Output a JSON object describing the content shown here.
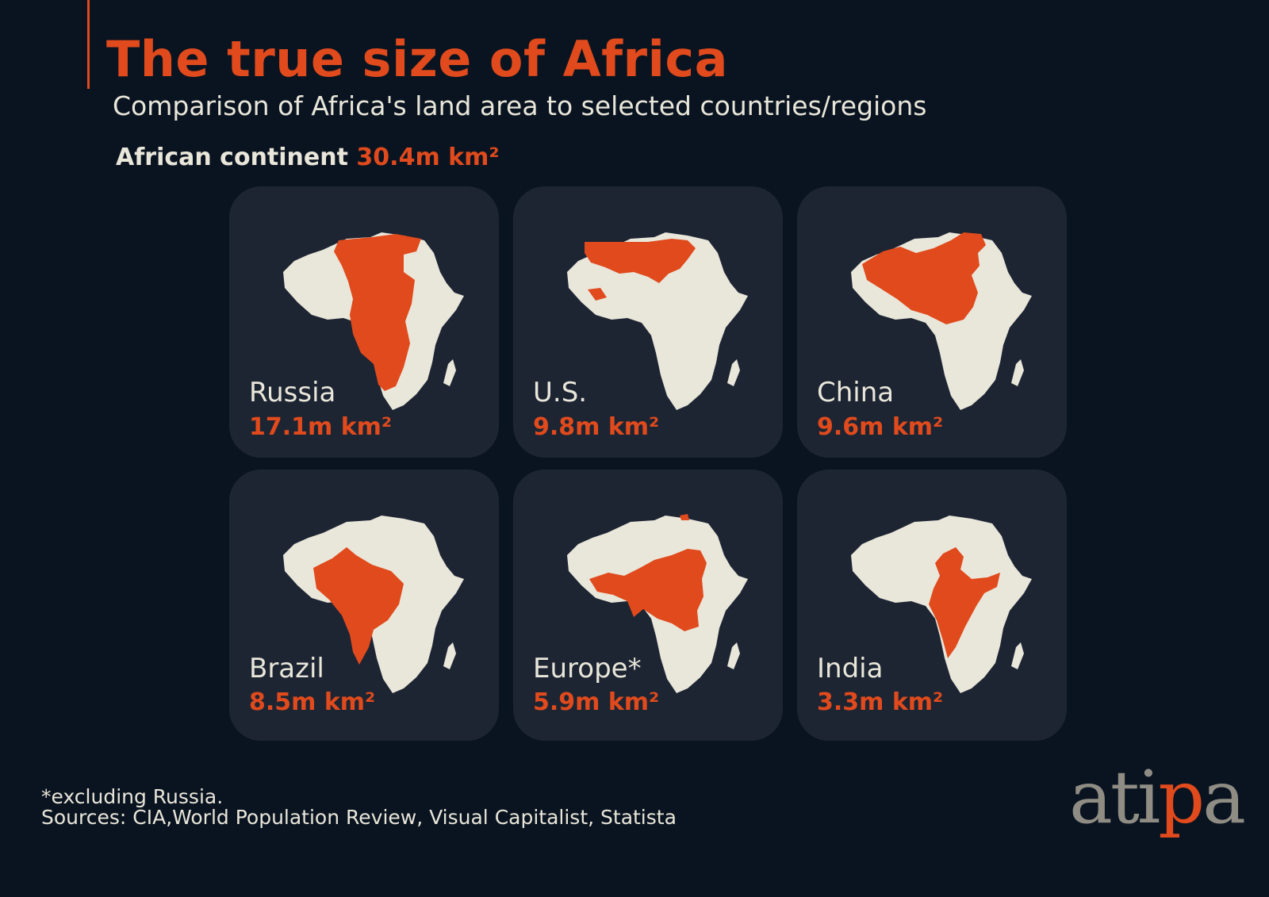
{
  "title": "The true size of Africa",
  "subtitle": "Comparison of Africa's land area to selected countries/regions",
  "continent": {
    "label": "African continent",
    "value": "30.4m km²"
  },
  "comparisons": [
    {
      "name": "Russia",
      "area": "17.1m km²",
      "icon": "russia-overlay-icon"
    },
    {
      "name": "U.S.",
      "area": "9.8m km²",
      "icon": "us-overlay-icon"
    },
    {
      "name": "China",
      "area": "9.6m km²",
      "icon": "china-overlay-icon"
    },
    {
      "name": "Brazil",
      "area": "8.5m km²",
      "icon": "brazil-overlay-icon"
    },
    {
      "name": "Europe*",
      "area": "5.9m km²",
      "icon": "europe-overlay-icon"
    },
    {
      "name": "India",
      "area": "3.3m km²",
      "icon": "india-overlay-icon"
    }
  ],
  "footnote": "*excluding Russia.",
  "sources": "Sources: CIA,World Population Review, Visual Capitalist, Statista",
  "logo": {
    "part1": "ati",
    "part2": "p",
    "part3": "a"
  },
  "colors": {
    "background": "#0a1420",
    "card": "#1d2533",
    "accent": "#e04a1c",
    "africa": "#e9e6da",
    "logo_gray": "#8f8c84"
  }
}
